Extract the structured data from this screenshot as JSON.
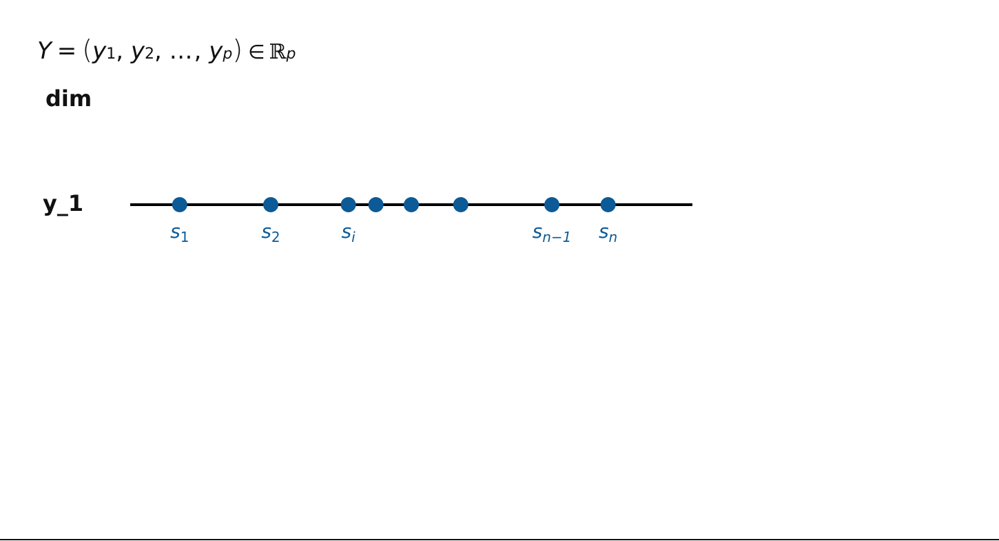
{
  "formula": {
    "lhs": "Y",
    "equals": "=",
    "open_paren": "(",
    "terms": [
      {
        "base": "y",
        "sub": "1"
      },
      {
        "base": "y",
        "sub": "2"
      },
      {
        "ellipsis": "…"
      },
      {
        "base": "y",
        "sub": "p"
      }
    ],
    "comma": ",",
    "close_paren": ")",
    "element_of": "∈",
    "space": "ℝ",
    "space_power": "p"
  },
  "dim_label": "dim",
  "axis_label": "y_1",
  "colors": {
    "point": "#0c5a96",
    "line": "#000000",
    "text": "#111111"
  },
  "points": [
    {
      "position": 0.088,
      "label_base": "s",
      "label_sub": "1"
    },
    {
      "position": 0.25,
      "label_base": "s",
      "label_sub": "2"
    },
    {
      "position": 0.388,
      "label_base": "s",
      "label_sub": "i"
    },
    {
      "position": 0.437,
      "label_base": "",
      "label_sub": ""
    },
    {
      "position": 0.5,
      "label_base": "",
      "label_sub": ""
    },
    {
      "position": 0.588,
      "label_base": "",
      "label_sub": ""
    },
    {
      "position": 0.75,
      "label_base": "s",
      "label_sub": "n−1"
    },
    {
      "position": 0.85,
      "label_base": "s",
      "label_sub": "n"
    }
  ]
}
